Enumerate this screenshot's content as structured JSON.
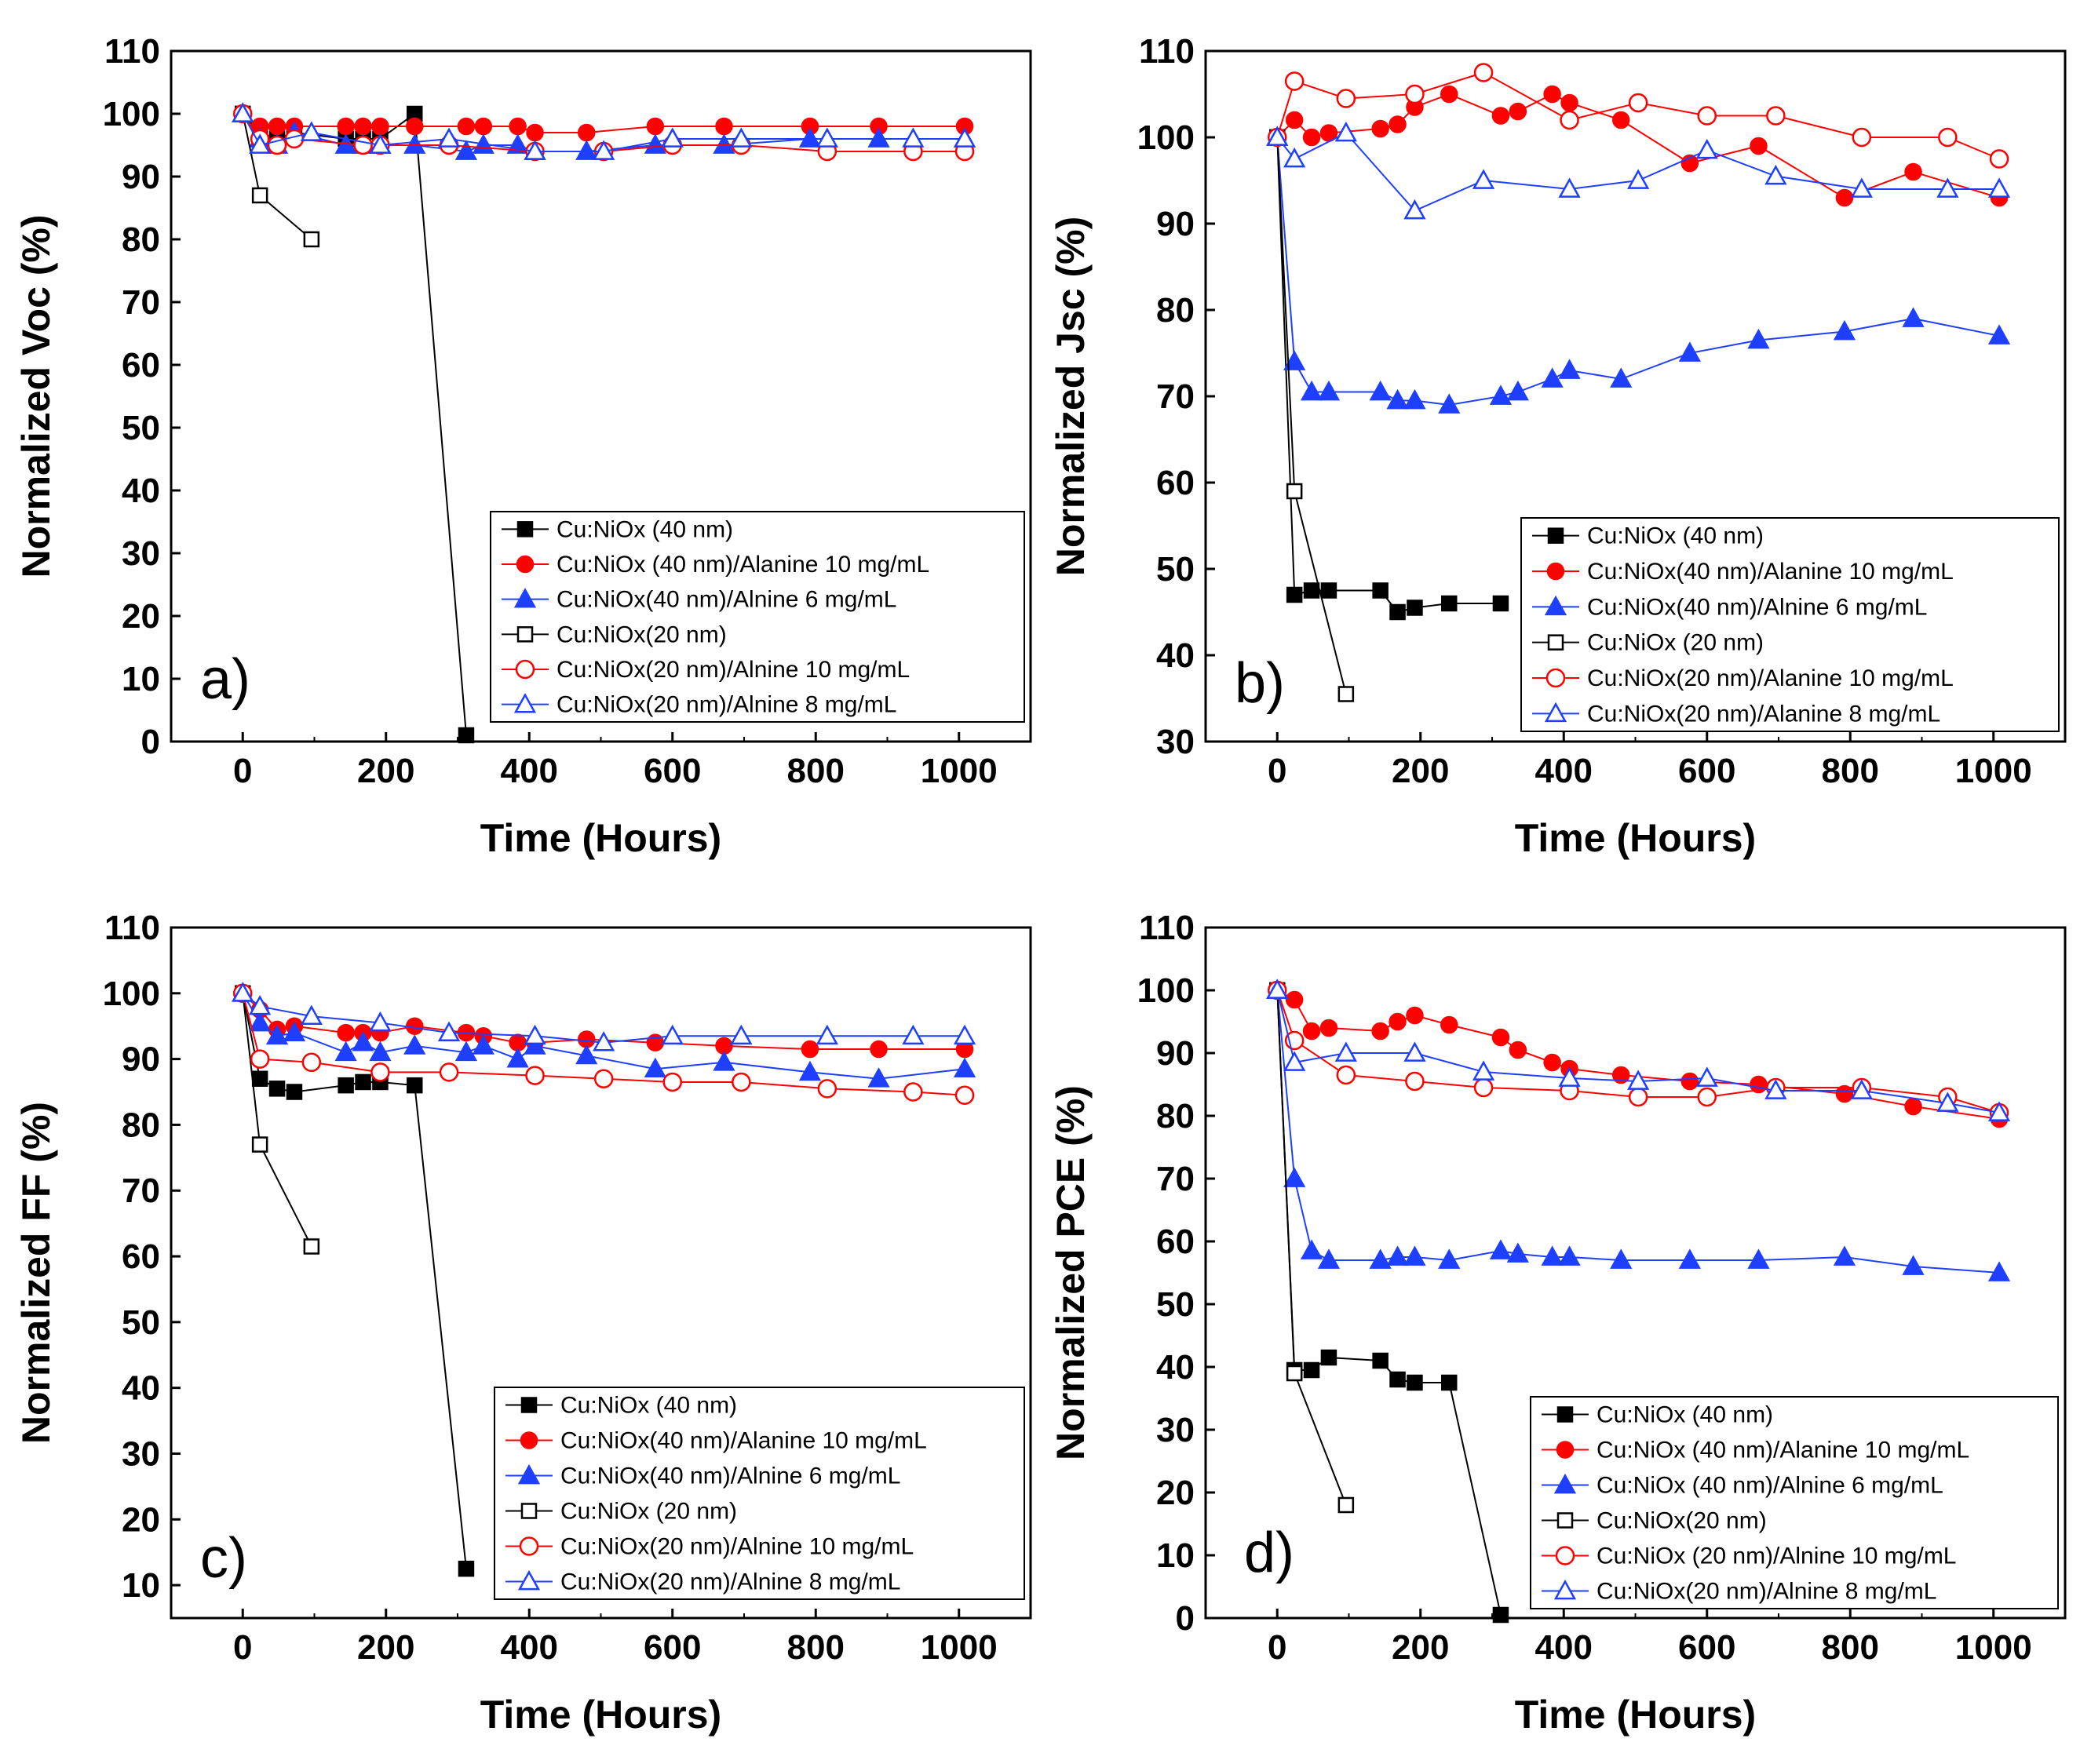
{
  "colors": {
    "black": "#000000",
    "red": "#ff0000",
    "blue": "#1f3fff"
  },
  "chart_data": [
    {
      "type": "line",
      "panel": "a)",
      "xlabel": "Time (Hours)",
      "ylabel": "Normalized Voc (%)",
      "xlim": [
        -100,
        1100
      ],
      "ylim": [
        0,
        110
      ],
      "xticks": [
        0,
        200,
        400,
        600,
        800,
        1000
      ],
      "yticks": [
        0,
        10,
        20,
        30,
        40,
        50,
        60,
        70,
        80,
        90,
        100,
        110
      ],
      "legend_position": "bottom-right",
      "series": [
        {
          "name": "Cu:NiOx (40 nm)",
          "color": "black",
          "marker": "square",
          "filled": true,
          "x": [
            0,
            24,
            48,
            72,
            144,
            168,
            192,
            240,
            312
          ],
          "y": [
            100,
            97,
            96,
            97,
            96,
            96,
            96,
            100,
            1
          ]
        },
        {
          "name": "Cu:NiOx (40 nm)/Alanine 10 mg/mL",
          "color": "red",
          "marker": "circle",
          "filled": true,
          "x": [
            0,
            24,
            48,
            72,
            144,
            168,
            192,
            240,
            312,
            336,
            384,
            408,
            480,
            576,
            672,
            792,
            888,
            1008
          ],
          "y": [
            100,
            98,
            98,
            98,
            98,
            98,
            98,
            98,
            98,
            98,
            98,
            97,
            97,
            98,
            98,
            98,
            98,
            98
          ]
        },
        {
          "name": "Cu:NiOx(40 nm)/Alnine 6 mg/mL",
          "color": "blue",
          "marker": "triangle",
          "filled": true,
          "x": [
            0,
            24,
            48,
            72,
            144,
            168,
            192,
            240,
            312,
            336,
            384,
            408,
            480,
            576,
            672,
            792,
            888,
            1008
          ],
          "y": [
            100,
            96,
            95,
            97,
            95,
            95,
            95,
            95,
            94,
            95,
            95,
            94,
            94,
            95,
            95,
            96,
            96,
            96
          ]
        },
        {
          "name": "Cu:NiOx(20 nm)",
          "color": "black",
          "marker": "square",
          "filled": false,
          "x": [
            0,
            24,
            96
          ],
          "y": [
            100,
            87,
            80
          ]
        },
        {
          "name": "Cu:NiOx(20 nm)/Alnine 10 mg/mL",
          "color": "red",
          "marker": "circle",
          "filled": false,
          "x": [
            0,
            24,
            48,
            72,
            168,
            192,
            288,
            408,
            504,
            600,
            696,
            816,
            936,
            1008
          ],
          "y": [
            100,
            96,
            95,
            96,
            95,
            95,
            95,
            94,
            94,
            95,
            95,
            94,
            94,
            94
          ]
        },
        {
          "name": "Cu:NiOx(20 nm)/Alnine 8 mg/mL",
          "color": "blue",
          "marker": "triangle",
          "filled": false,
          "x": [
            0,
            24,
            96,
            192,
            288,
            408,
            504,
            600,
            696,
            816,
            936,
            1008
          ],
          "y": [
            100,
            95,
            97,
            95,
            96,
            94,
            94,
            96,
            96,
            96,
            96,
            96
          ]
        }
      ]
    },
    {
      "type": "line",
      "panel": "b)",
      "xlabel": "Time (Hours)",
      "ylabel": "Normalized Jsc (%)",
      "xlim": [
        -100,
        1100
      ],
      "ylim": [
        30,
        110
      ],
      "xticks": [
        0,
        200,
        400,
        600,
        800,
        1000
      ],
      "yticks": [
        30,
        40,
        50,
        60,
        70,
        80,
        90,
        100,
        110
      ],
      "legend_position": "bottom-right",
      "series": [
        {
          "name": "Cu:NiOx (40 nm)",
          "color": "black",
          "marker": "square",
          "filled": true,
          "x": [
            0,
            24,
            48,
            72,
            144,
            168,
            192,
            240,
            312
          ],
          "y": [
            100,
            47,
            47.5,
            47.5,
            47.5,
            45,
            45.5,
            46,
            46
          ]
        },
        {
          "name": "Cu:NiOx(40 nm)/Alanine 10 mg/mL",
          "color": "red",
          "marker": "circle",
          "filled": true,
          "x": [
            0,
            24,
            48,
            72,
            144,
            168,
            192,
            240,
            312,
            336,
            384,
            408,
            480,
            576,
            672,
            792,
            888,
            1008
          ],
          "y": [
            100,
            102,
            100,
            100.5,
            101,
            101.5,
            103.5,
            105,
            102.5,
            103,
            105,
            104,
            102,
            97,
            99,
            93,
            96,
            93
          ]
        },
        {
          "name": "Cu:NiOx(40 nm)/Alnine 6 mg/mL",
          "color": "blue",
          "marker": "triangle",
          "filled": true,
          "x": [
            0,
            24,
            48,
            72,
            144,
            168,
            192,
            240,
            312,
            336,
            384,
            408,
            480,
            576,
            672,
            792,
            888,
            1008
          ],
          "y": [
            100,
            74,
            70.5,
            70.5,
            70.5,
            69.5,
            69.5,
            69,
            70,
            70.5,
            72,
            73,
            72,
            75,
            76.5,
            77.5,
            79,
            77
          ]
        },
        {
          "name": "Cu:NiOx (20 nm)",
          "color": "black",
          "marker": "square",
          "filled": false,
          "x": [
            0,
            24,
            96
          ],
          "y": [
            100,
            59,
            35.5
          ]
        },
        {
          "name": "Cu:NiOx(20 nm)/Alanine 10 mg/mL",
          "color": "red",
          "marker": "circle",
          "filled": false,
          "x": [
            0,
            24,
            96,
            192,
            288,
            408,
            504,
            600,
            696,
            816,
            936,
            1008
          ],
          "y": [
            100,
            106.5,
            104.5,
            105,
            107.5,
            102,
            104,
            102.5,
            102.5,
            100,
            100,
            97.5
          ]
        },
        {
          "name": "Cu:NiOx(20 nm)/Alanine 8 mg/mL",
          "color": "blue",
          "marker": "triangle",
          "filled": false,
          "x": [
            0,
            24,
            96,
            192,
            288,
            408,
            504,
            600,
            696,
            816,
            936,
            1008
          ],
          "y": [
            100,
            97.5,
            100.5,
            91.5,
            95,
            94,
            95,
            98.5,
            95.5,
            94,
            94,
            94
          ]
        }
      ]
    },
    {
      "type": "line",
      "panel": "c)",
      "xlabel": "Time (Hours)",
      "ylabel": "Normalized FF (%)",
      "xlim": [
        -100,
        1100
      ],
      "ylim": [
        5,
        110
      ],
      "xticks": [
        0,
        200,
        400,
        600,
        800,
        1000
      ],
      "yticks": [
        10,
        20,
        30,
        40,
        50,
        60,
        70,
        80,
        90,
        100,
        110
      ],
      "legend_position": "bottom-right",
      "series": [
        {
          "name": "Cu:NiOx (40 nm)",
          "color": "black",
          "marker": "square",
          "filled": true,
          "x": [
            0,
            24,
            48,
            72,
            144,
            168,
            192,
            240,
            312
          ],
          "y": [
            100,
            87,
            85.5,
            85,
            86,
            86.5,
            86.5,
            86,
            12.5
          ]
        },
        {
          "name": "Cu:NiOx(40 nm)/Alanine 10 mg/mL",
          "color": "red",
          "marker": "circle",
          "filled": true,
          "x": [
            0,
            24,
            48,
            72,
            144,
            168,
            192,
            240,
            312,
            336,
            384,
            408,
            480,
            576,
            672,
            792,
            888,
            1008
          ],
          "y": [
            100,
            97.5,
            94.5,
            95,
            94,
            94,
            94,
            95,
            94,
            93.5,
            92.5,
            92.5,
            93,
            92.5,
            92,
            91.5,
            91.5,
            91.5
          ]
        },
        {
          "name": "Cu:NiOx(40 nm)/Alnine 6 mg/mL",
          "color": "blue",
          "marker": "triangle",
          "filled": true,
          "x": [
            0,
            24,
            48,
            72,
            144,
            168,
            192,
            240,
            312,
            336,
            384,
            408,
            480,
            576,
            672,
            792,
            888,
            1008
          ],
          "y": [
            100,
            95.5,
            93.5,
            94,
            91,
            92.5,
            91,
            92,
            91,
            92,
            90,
            92,
            90.5,
            88.5,
            89.5,
            88,
            87,
            88.5
          ]
        },
        {
          "name": "Cu:NiOx (20 nm)",
          "color": "black",
          "marker": "square",
          "filled": false,
          "x": [
            0,
            24,
            96
          ],
          "y": [
            100,
            77,
            61.5
          ]
        },
        {
          "name": "Cu:NiOx(20 nm)/Alnine 10 mg/mL",
          "color": "red",
          "marker": "circle",
          "filled": false,
          "x": [
            0,
            24,
            96,
            192,
            288,
            408,
            504,
            600,
            696,
            816,
            936,
            1008
          ],
          "y": [
            100,
            90,
            89.5,
            88,
            88,
            87.5,
            87,
            86.5,
            86.5,
            85.5,
            85,
            84.5
          ]
        },
        {
          "name": "Cu:NiOx(20 nm)/Alnine 8 mg/mL",
          "color": "blue",
          "marker": "triangle",
          "filled": false,
          "x": [
            0,
            24,
            96,
            192,
            288,
            408,
            504,
            600,
            696,
            816,
            936,
            1008
          ],
          "y": [
            100,
            98,
            96.5,
            95.5,
            94,
            93.5,
            92.5,
            93.5,
            93.5,
            93.5,
            93.5,
            93.5
          ]
        }
      ]
    },
    {
      "type": "line",
      "panel": "d)",
      "xlabel": "Time (Hours)",
      "ylabel": "Normalized PCE (%)",
      "xlim": [
        -100,
        1100
      ],
      "ylim": [
        0,
        110
      ],
      "xticks": [
        0,
        200,
        400,
        600,
        800,
        1000
      ],
      "yticks": [
        0,
        10,
        20,
        30,
        40,
        50,
        60,
        70,
        80,
        90,
        100,
        110
      ],
      "legend_position": "bottom-right",
      "series": [
        {
          "name": "Cu:NiOx (40 nm)",
          "color": "black",
          "marker": "square",
          "filled": true,
          "x": [
            0,
            24,
            48,
            72,
            144,
            168,
            192,
            240,
            312
          ],
          "y": [
            100,
            39.5,
            39.5,
            41.5,
            41,
            38,
            37.5,
            37.5,
            0.5
          ]
        },
        {
          "name": "Cu:NiOx (40 nm)/Alanine 10 mg/mL",
          "color": "red",
          "marker": "circle",
          "filled": true,
          "x": [
            0,
            24,
            48,
            72,
            144,
            168,
            192,
            240,
            312,
            336,
            384,
            408,
            480,
            576,
            672,
            792,
            888,
            1008
          ],
          "y": [
            100,
            98.5,
            93.5,
            94,
            93.5,
            95,
            96,
            94.5,
            92.5,
            90.5,
            88.5,
            87.5,
            86.5,
            85.5,
            85,
            83.5,
            81.5,
            79.5
          ]
        },
        {
          "name": "Cu:NiOx (40 nm)/Alnine 6 mg/mL",
          "color": "blue",
          "marker": "triangle",
          "filled": true,
          "x": [
            0,
            24,
            48,
            72,
            144,
            168,
            192,
            240,
            312,
            336,
            384,
            408,
            480,
            576,
            672,
            792,
            888,
            1008
          ],
          "y": [
            100,
            70,
            58.5,
            57,
            57,
            57.5,
            57.5,
            57,
            58.5,
            58,
            57.5,
            57.5,
            57,
            57,
            57,
            57.5,
            56,
            55
          ]
        },
        {
          "name": "Cu:NiOx(20 nm)",
          "color": "black",
          "marker": "square",
          "filled": false,
          "x": [
            0,
            24,
            96
          ],
          "y": [
            100,
            39,
            18
          ]
        },
        {
          "name": "Cu:NiOx (20 nm)/Alnine 10 mg/mL",
          "color": "red",
          "marker": "circle",
          "filled": false,
          "x": [
            0,
            24,
            96,
            192,
            288,
            408,
            504,
            600,
            696,
            816,
            936,
            1008
          ],
          "y": [
            100,
            92,
            86.5,
            85.5,
            84.5,
            84,
            83,
            83,
            84.5,
            84.5,
            83,
            80.5
          ]
        },
        {
          "name": "Cu:NiOx(20 nm)/Alnine 8 mg/mL",
          "color": "blue",
          "marker": "triangle",
          "filled": false,
          "x": [
            0,
            24,
            96,
            192,
            288,
            408,
            504,
            600,
            696,
            816,
            936,
            1008
          ],
          "y": [
            100,
            88.5,
            90,
            90,
            87,
            86,
            85.5,
            86,
            84,
            84,
            82,
            80.5
          ]
        }
      ]
    }
  ]
}
